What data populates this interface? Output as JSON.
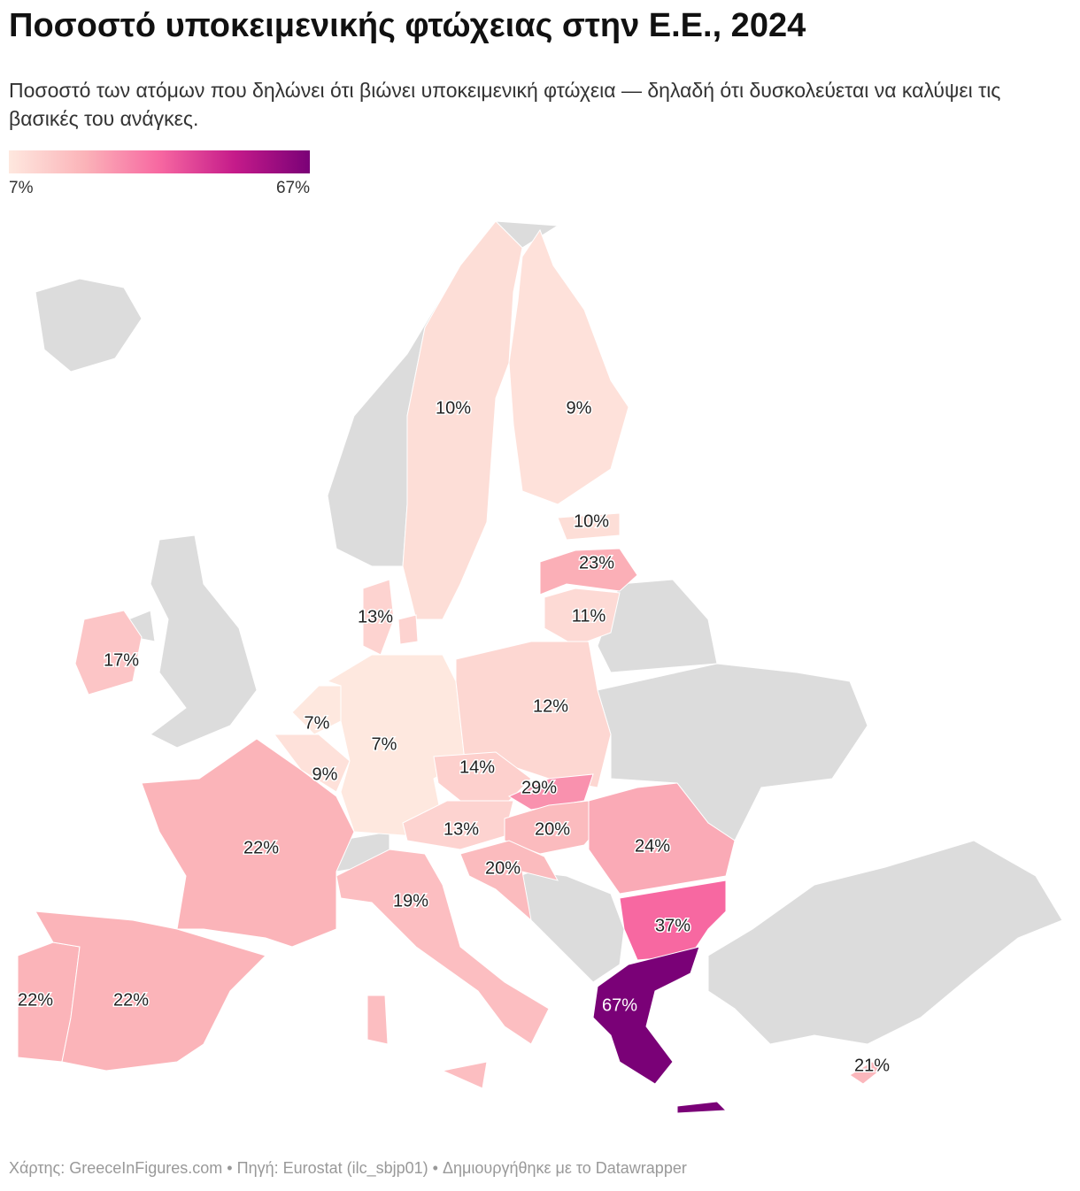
{
  "chart_data": {
    "type": "map",
    "title": "Ποσοστό υποκειμενικής φτώχειας στην Ε.Ε., 2024",
    "subtitle": "Ποσοστό των ατόμων που δηλώνει ότι βιώνει υποκειμενική φτώχεια — δηλαδή ότι δυσκολεύεται να καλύψει τις βασικές του ανάγκες.",
    "legend": {
      "min": {
        "value": 7,
        "label": "7%"
      },
      "max": {
        "value": 67,
        "label": "67%"
      },
      "colors": [
        "#fee8df",
        "#fbb4b9",
        "#f768a1",
        "#c51b8a",
        "#7a0177"
      ]
    },
    "values": [
      10,
      9,
      10,
      23,
      11,
      13,
      17,
      7,
      9,
      7,
      12,
      14,
      29,
      13,
      20,
      20,
      24,
      37,
      22,
      19,
      22,
      22,
      67,
      21
    ],
    "value_labels": [
      "10%",
      "9%",
      "10%",
      "23%",
      "11%",
      "13%",
      "17%",
      "7%",
      "9%",
      "7%",
      "12%",
      "14%",
      "29%",
      "13%",
      "20%",
      "20%",
      "24%",
      "37%",
      "22%",
      "19%",
      "22%",
      "22%",
      "67%",
      "21%"
    ],
    "source": "Χάρτης: GreeceInFigures.com • Πηγή: Eurostat (ilc_sbjp01)  • Δημιουργήθηκε με το Datawrapper"
  }
}
